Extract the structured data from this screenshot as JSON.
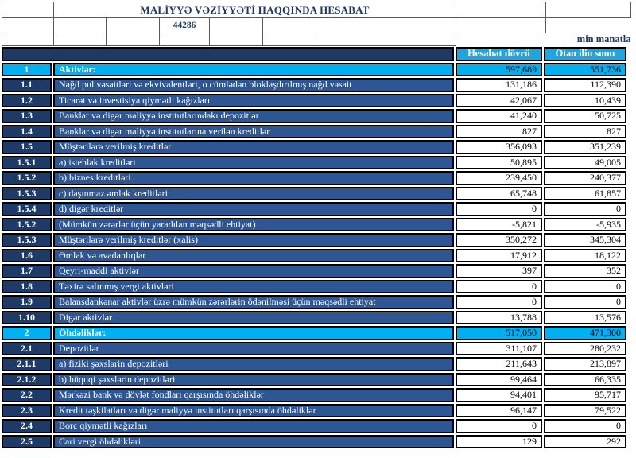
{
  "meta": {
    "title": "MALİYYƏ VƏZİYYƏTİ HAQQINDA HESABAT",
    "date_serial": "44286",
    "unit_note": "min manatla"
  },
  "table": {
    "headers": {
      "current": "Hesabat dövrü",
      "previous": "Ötən ilin sonu"
    },
    "rows": [
      {
        "num": "1",
        "label": "Aktivlər:",
        "current": "597,689",
        "previous": "551,736",
        "section": true
      },
      {
        "num": "1.1",
        "label": "Nağd pul vəsaitləri və  ekvivalentləri, o cümlədən bloklaşdırılmış nağd vəsait",
        "current": "131,186",
        "previous": "112,390",
        "section": false
      },
      {
        "num": "1.2",
        "label": "Ticarət və investisiya qiymətli kağızları",
        "current": "42,067",
        "previous": "10,439",
        "section": false
      },
      {
        "num": "1.3",
        "label": "Banklar və digər maliyyə institutlarındakı depozitlər",
        "current": "41,240",
        "previous": "50,725",
        "section": false
      },
      {
        "num": "1.4",
        "label": "Banklar və digər maliyyə institutlarına verilən kreditlər",
        "current": "827",
        "previous": "827",
        "section": false
      },
      {
        "num": "1.5",
        "label": "Müştərilərə verilmiş kreditlər",
        "current": "356,093",
        "previous": "351,239",
        "section": false
      },
      {
        "num": "1.5.1",
        "label": "a) istehlak kreditləri",
        "current": "50,895",
        "previous": "49,005",
        "section": false
      },
      {
        "num": "1.5.2",
        "label": "b) biznes kreditləri",
        "current": "239,450",
        "previous": "240,377",
        "section": false
      },
      {
        "num": "1.5.3",
        "label": "c) daşınmaz əmlak kreditləri",
        "current": "65,748",
        "previous": "61,857",
        "section": false
      },
      {
        "num": "1.5.4",
        "label": "d) digər kreditlər",
        "current": "0",
        "previous": "0",
        "section": false
      },
      {
        "num": "1.5.2",
        "label": "(Mümkün zərərlər üçün yaradılan məqsədli ehtiyat)",
        "current": "-5,821",
        "previous": "-5,935",
        "section": false
      },
      {
        "num": "1.5.3",
        "label": "Müştərilərə verilmiş kreditlər (xalis)",
        "current": "350,272",
        "previous": "345,304",
        "section": false
      },
      {
        "num": "1.6",
        "label": "Əmlak və avadanlıqlar",
        "current": "17,912",
        "previous": "18,122",
        "section": false
      },
      {
        "num": "1.7",
        "label": "Qeyri-maddi aktivlər",
        "current": "397",
        "previous": "352",
        "section": false
      },
      {
        "num": "1.8",
        "label": "Təxirə salınmış vergi aktivləri",
        "current": "0",
        "previous": "0",
        "section": false
      },
      {
        "num": "1.9",
        "label": "Balansdankənar aktivlər üzrə mümkün zərərlərin ödənilməsi üçün məqsədli ehtiyat",
        "current": "0",
        "previous": "0",
        "section": false
      },
      {
        "num": "1.10",
        "label": "Digər aktivlər",
        "current": "13,788",
        "previous": "13,576",
        "section": false
      },
      {
        "num": "2",
        "label": "Öhdəliklər:",
        "current": "517,050",
        "previous": "471,300",
        "section": true
      },
      {
        "num": "2.1",
        "label": "Depozitlər",
        "current": "311,107",
        "previous": "280,232",
        "section": false
      },
      {
        "num": "2.1.1",
        "label": "a) fiziki şəxslərin depozitləri",
        "current": "211,643",
        "previous": "213,897",
        "section": false
      },
      {
        "num": "2.1.2",
        "label": "b) hüquqi şəxslərin depozitləri",
        "current": "99,464",
        "previous": "66,335",
        "section": false
      },
      {
        "num": "2.2",
        "label": "Mərkəzi bank və dövlət fondları qarşısında öhdəliklər",
        "current": "94,401",
        "previous": "95,717",
        "section": false
      },
      {
        "num": "2.3",
        "label": "Kredit təşkilatları və digər maliyyə institutları qarşısında öhdəliklər",
        "current": "96,147",
        "previous": "79,522",
        "section": false
      },
      {
        "num": "2.4",
        "label": "Borc qiymətli kağızları",
        "current": "0",
        "previous": "0",
        "section": false
      },
      {
        "num": "2.5",
        "label": "Cari vergi öhdəlikləri",
        "current": "129",
        "previous": "292",
        "section": false
      }
    ]
  },
  "colors": {
    "band": "#1F3864",
    "row_num": "#1E3A66",
    "row_label": "#2E5693",
    "section": "#00B0F0",
    "header_cell": "#22A5DE",
    "value_text": "#000000",
    "grid_line": "#595959",
    "title_text": "#1F3864"
  }
}
